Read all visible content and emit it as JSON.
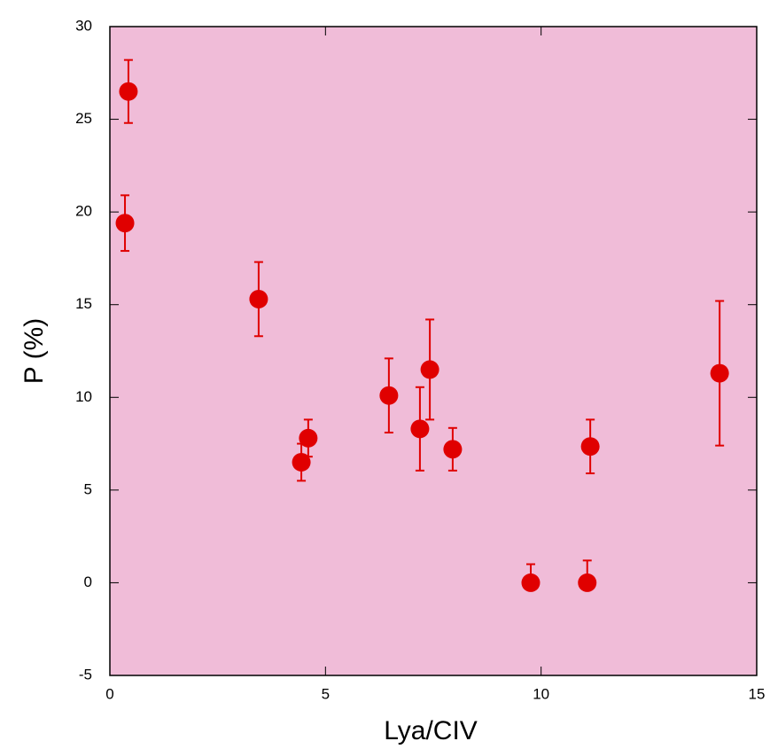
{
  "chart_data": {
    "type": "scatter",
    "x_label": "Lya/CIV",
    "y_label": "P (%)",
    "x": [
      0.43,
      0.35,
      3.45,
      4.44,
      4.6,
      6.47,
      7.19,
      7.42,
      7.95,
      9.76,
      11.07,
      11.14,
      14.14
    ],
    "series": [
      {
        "color": "#e00000",
        "values": [
          26.5,
          19.4,
          15.3,
          6.5,
          7.8,
          10.1,
          8.3,
          11.5,
          7.2,
          0,
          0,
          7.35,
          11.3
        ],
        "yerr_low": [
          1.7,
          1.5,
          2.0,
          1.0,
          1.0,
          2.0,
          2.25,
          2.7,
          1.15,
          0,
          0,
          1.45,
          3.9
        ],
        "yerr_high": [
          1.7,
          1.5,
          2.0,
          1.0,
          1.0,
          2.0,
          2.25,
          2.7,
          1.15,
          1.0,
          1.2,
          1.45,
          3.9
        ]
      }
    ],
    "xlim": [
      0,
      15
    ],
    "ylim": [
      -5,
      30
    ],
    "xticks": [
      0,
      5,
      10,
      15
    ],
    "yticks": [
      -5,
      0,
      5,
      10,
      15,
      20,
      25,
      30
    ],
    "background": "#f0bcd8"
  }
}
